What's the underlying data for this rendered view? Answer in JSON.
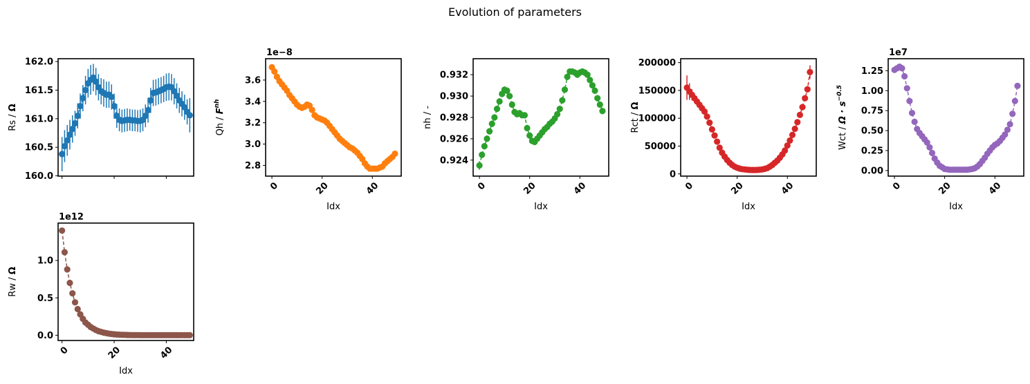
{
  "figure": {
    "suptitle": "Evolution of parameters"
  },
  "chart_data": [
    {
      "type": "line",
      "id": "rs",
      "color": "#1f77b4",
      "errorbars": true,
      "ylabel_text": "Rs / ",
      "ylabel_unit": "Ω",
      "ylabel_sup": "",
      "xlabel": "",
      "show_x_ticklabels": false,
      "offset_text": "",
      "xlim": [
        -1.5,
        50.5
      ],
      "ylim": [
        159.995,
        162.05
      ],
      "xticks": [
        0,
        20,
        40
      ],
      "xticklabels": [
        "",
        "",
        ""
      ],
      "yticks": [
        160.0,
        160.5,
        161.0,
        161.5,
        162.0
      ],
      "yticklabels": [
        "160.0",
        "160.5",
        "161.0",
        "161.5",
        "162.0"
      ],
      "x": [
        0,
        1,
        2,
        3,
        4,
        5,
        6,
        7,
        8,
        9,
        10,
        11,
        12,
        13,
        14,
        15,
        16,
        17,
        18,
        19,
        20,
        21,
        22,
        23,
        24,
        25,
        26,
        27,
        28,
        29,
        30,
        31,
        32,
        33,
        34,
        35,
        36,
        37,
        38,
        39,
        40,
        41,
        42,
        43,
        44,
        45,
        46,
        47,
        48,
        49
      ],
      "values": [
        160.38,
        160.52,
        160.62,
        160.72,
        160.82,
        160.92,
        161.05,
        161.22,
        161.36,
        161.5,
        161.62,
        161.68,
        161.72,
        161.65,
        161.55,
        161.48,
        161.45,
        161.42,
        161.42,
        161.38,
        161.22,
        161.05,
        160.98,
        160.96,
        160.97,
        160.98,
        160.98,
        160.97,
        160.97,
        160.96,
        160.96,
        160.98,
        161.05,
        161.15,
        161.32,
        161.45,
        161.46,
        161.48,
        161.5,
        161.52,
        161.55,
        161.56,
        161.55,
        161.48,
        161.4,
        161.32,
        161.26,
        161.2,
        161.12,
        161.06
      ],
      "err": [
        0.3,
        0.28,
        0.27,
        0.26,
        0.24,
        0.22,
        0.22,
        0.22,
        0.23,
        0.25,
        0.25,
        0.26,
        0.24,
        0.24,
        0.23,
        0.23,
        0.24,
        0.23,
        0.23,
        0.22,
        0.22,
        0.21,
        0.2,
        0.2,
        0.2,
        0.2,
        0.19,
        0.19,
        0.19,
        0.19,
        0.2,
        0.2,
        0.2,
        0.22,
        0.22,
        0.23,
        0.23,
        0.23,
        0.23,
        0.23,
        0.24,
        0.24,
        0.23,
        0.23,
        0.22,
        0.22,
        0.22,
        0.22,
        0.22,
        0.3
      ]
    },
    {
      "type": "line",
      "id": "qh",
      "color": "#ff7f0e",
      "errorbars": true,
      "ylabel_text": "Qh / ",
      "ylabel_unit": "F",
      "ylabel_sup": "nh",
      "xlabel": "Idx",
      "show_x_ticklabels": true,
      "offset_text": "1e−8",
      "xlim": [
        -2.5,
        51.5
      ],
      "ylim": [
        2.7,
        3.8
      ],
      "xticks": [
        0,
        20,
        40
      ],
      "xticklabels": [
        "0",
        "20",
        "40"
      ],
      "yticks": [
        2.8,
        3.0,
        3.2,
        3.4,
        3.6
      ],
      "yticklabels": [
        "2.8",
        "3.0",
        "3.2",
        "3.4",
        "3.6"
      ],
      "x": [
        0,
        1,
        2,
        3,
        4,
        5,
        6,
        7,
        8,
        9,
        10,
        11,
        12,
        13,
        14,
        15,
        16,
        17,
        18,
        19,
        20,
        21,
        22,
        23,
        24,
        25,
        26,
        27,
        28,
        29,
        30,
        31,
        32,
        33,
        34,
        35,
        36,
        37,
        38,
        39,
        40,
        41,
        42,
        43,
        44,
        45,
        46,
        47,
        48,
        49
      ],
      "values": [
        3.72,
        3.68,
        3.63,
        3.59,
        3.56,
        3.53,
        3.5,
        3.46,
        3.43,
        3.4,
        3.37,
        3.35,
        3.34,
        3.35,
        3.37,
        3.36,
        3.32,
        3.27,
        3.25,
        3.24,
        3.23,
        3.22,
        3.2,
        3.17,
        3.14,
        3.11,
        3.08,
        3.05,
        3.03,
        3.01,
        2.99,
        2.97,
        2.96,
        2.94,
        2.92,
        2.89,
        2.86,
        2.82,
        2.79,
        2.77,
        2.77,
        2.77,
        2.77,
        2.78,
        2.79,
        2.82,
        2.84,
        2.86,
        2.88,
        2.91
      ],
      "err": [
        0.01,
        0.01,
        0.01,
        0.01,
        0.01,
        0.01,
        0.01,
        0.01,
        0.01,
        0.01,
        0.01,
        0.01,
        0.01,
        0.01,
        0.01,
        0.01,
        0.01,
        0.01,
        0.01,
        0.01,
        0.01,
        0.01,
        0.01,
        0.01,
        0.01,
        0.01,
        0.01,
        0.01,
        0.01,
        0.01,
        0.01,
        0.01,
        0.01,
        0.01,
        0.01,
        0.01,
        0.01,
        0.01,
        0.01,
        0.01,
        0.01,
        0.01,
        0.01,
        0.01,
        0.01,
        0.01,
        0.01,
        0.01,
        0.01,
        0.01
      ]
    },
    {
      "type": "line",
      "id": "nh",
      "color": "#2ca02c",
      "errorbars": true,
      "ylabel_text": "nh / -",
      "ylabel_unit": "",
      "ylabel_sup": "",
      "xlabel": "Idx",
      "show_x_ticklabels": true,
      "offset_text": "",
      "xlim": [
        -2.5,
        51.5
      ],
      "ylim": [
        0.9225,
        0.9335
      ],
      "xticks": [
        0,
        20,
        40
      ],
      "xticklabels": [
        "0",
        "20",
        "40"
      ],
      "yticks": [
        0.924,
        0.926,
        0.928,
        0.93,
        0.932
      ],
      "yticklabels": [
        "0.924",
        "0.926",
        "0.928",
        "0.930",
        "0.932"
      ],
      "x": [
        0,
        1,
        2,
        3,
        4,
        5,
        6,
        7,
        8,
        9,
        10,
        11,
        12,
        13,
        14,
        15,
        16,
        17,
        18,
        19,
        20,
        21,
        22,
        23,
        24,
        25,
        26,
        27,
        28,
        29,
        30,
        31,
        32,
        33,
        34,
        35,
        36,
        37,
        38,
        39,
        40,
        41,
        42,
        43,
        44,
        45,
        46,
        47,
        48,
        49
      ],
      "values": [
        0.9235,
        0.9245,
        0.9253,
        0.926,
        0.9267,
        0.9274,
        0.928,
        0.9288,
        0.9295,
        0.9302,
        0.9306,
        0.9305,
        0.93,
        0.9292,
        0.9285,
        0.9283,
        0.9284,
        0.9282,
        0.9282,
        0.927,
        0.9263,
        0.9258,
        0.9257,
        0.926,
        0.9263,
        0.9266,
        0.9269,
        0.9271,
        0.9274,
        0.9276,
        0.9279,
        0.9283,
        0.9288,
        0.9296,
        0.9306,
        0.9318,
        0.9323,
        0.9323,
        0.9322,
        0.932,
        0.9322,
        0.9323,
        0.9322,
        0.932,
        0.9315,
        0.931,
        0.9305,
        0.9298,
        0.9292,
        0.9286
      ],
      "err": [
        0.0004,
        0.0003,
        0.0003,
        0.0003,
        0.0003,
        0.0003,
        0.0003,
        0.0003,
        0.0003,
        0.0003,
        0.0003,
        0.0003,
        0.0003,
        0.0003,
        0.0003,
        0.0003,
        0.0003,
        0.0003,
        0.0003,
        0.0003,
        0.0003,
        0.0003,
        0.0003,
        0.0003,
        0.0003,
        0.0003,
        0.0003,
        0.0003,
        0.0003,
        0.0003,
        0.0003,
        0.0003,
        0.0003,
        0.0003,
        0.0003,
        0.0003,
        0.0003,
        0.0003,
        0.0003,
        0.0003,
        0.0003,
        0.0003,
        0.0003,
        0.0003,
        0.0003,
        0.0003,
        0.0003,
        0.0003,
        0.0003,
        0.0003
      ]
    },
    {
      "type": "line",
      "id": "rct",
      "color": "#d62728",
      "errorbars": true,
      "ylabel_text": "Rct / ",
      "ylabel_unit": "Ω",
      "ylabel_sup": "",
      "xlabel": "Idx",
      "show_x_ticklabels": true,
      "offset_text": "",
      "xlim": [
        -2.5,
        51.5
      ],
      "ylim": [
        -4000,
        207000
      ],
      "xticks": [
        0,
        20,
        40
      ],
      "xticklabels": [
        "0",
        "20",
        "40"
      ],
      "yticks": [
        0,
        50000,
        100000,
        150000,
        200000
      ],
      "yticklabels": [
        "0",
        "50000",
        "100000",
        "150000",
        "200000"
      ],
      "x": [
        0,
        1,
        2,
        3,
        4,
        5,
        6,
        7,
        8,
        9,
        10,
        11,
        12,
        13,
        14,
        15,
        16,
        17,
        18,
        19,
        20,
        21,
        22,
        23,
        24,
        25,
        26,
        27,
        28,
        29,
        30,
        31,
        32,
        33,
        34,
        35,
        36,
        37,
        38,
        39,
        40,
        41,
        42,
        43,
        44,
        45,
        46,
        47,
        48,
        49
      ],
      "values": [
        155000,
        148000,
        142000,
        136000,
        130000,
        124000,
        118000,
        112000,
        103000,
        92000,
        80000,
        69000,
        58000,
        47000,
        38000,
        31000,
        25000,
        20000,
        16000,
        13000,
        11000,
        9500,
        8500,
        8000,
        7500,
        7200,
        7000,
        7000,
        7200,
        7500,
        8000,
        9000,
        10500,
        13000,
        16000,
        20000,
        24000,
        29000,
        35000,
        42000,
        51000,
        60000,
        70000,
        81000,
        93000,
        106000,
        120000,
        136000,
        152000,
        183000
      ],
      "err": [
        22000,
        15000,
        10000,
        8000,
        6000,
        5000,
        4000,
        3000,
        3000,
        2500,
        2500,
        2000,
        2000,
        1500,
        1500,
        1200,
        1000,
        1000,
        800,
        800,
        700,
        700,
        600,
        600,
        600,
        600,
        600,
        600,
        600,
        600,
        600,
        700,
        700,
        800,
        900,
        1000,
        1100,
        1300,
        1500,
        1800,
        2000,
        2300,
        2600,
        3000,
        3500,
        4000,
        4500,
        5000,
        6000,
        12000
      ]
    },
    {
      "type": "line",
      "id": "wct",
      "color": "#9467bd",
      "errorbars": false,
      "ylabel_text": "Wct / ",
      "ylabel_unit": "Ω · s",
      "ylabel_sup": "−0.5",
      "xlabel": "Idx",
      "show_x_ticklabels": true,
      "offset_text": "1e7",
      "xlim": [
        -2.5,
        51.5
      ],
      "ylim": [
        -0.07,
        1.4
      ],
      "xticks": [
        0,
        20,
        40
      ],
      "xticklabels": [
        "0",
        "20",
        "40"
      ],
      "yticks": [
        0.0,
        0.25,
        0.5,
        0.75,
        1.0,
        1.25
      ],
      "yticklabels": [
        "0.00",
        "0.25",
        "0.50",
        "0.75",
        "1.00",
        "1.25"
      ],
      "x": [
        0,
        1,
        2,
        3,
        4,
        5,
        6,
        7,
        8,
        9,
        10,
        11,
        12,
        13,
        14,
        15,
        16,
        17,
        18,
        19,
        20,
        21,
        22,
        23,
        24,
        25,
        26,
        27,
        28,
        29,
        30,
        31,
        32,
        33,
        34,
        35,
        36,
        37,
        38,
        39,
        40,
        41,
        42,
        43,
        44,
        45,
        46,
        47,
        48,
        49
      ],
      "values": [
        1.26,
        1.28,
        1.3,
        1.28,
        1.18,
        1.03,
        0.87,
        0.72,
        0.61,
        0.52,
        0.47,
        0.43,
        0.39,
        0.35,
        0.29,
        0.22,
        0.15,
        0.1,
        0.06,
        0.04,
        0.02,
        0.015,
        0.01,
        0.01,
        0.01,
        0.01,
        0.01,
        0.01,
        0.01,
        0.01,
        0.015,
        0.02,
        0.03,
        0.05,
        0.08,
        0.12,
        0.16,
        0.21,
        0.25,
        0.29,
        0.32,
        0.34,
        0.37,
        0.41,
        0.45,
        0.51,
        0.58,
        0.71,
        0.87,
        1.06
      ],
      "err": []
    },
    {
      "type": "line",
      "id": "rw",
      "color": "#8c564b",
      "errorbars": false,
      "ylabel_text": "Rw / ",
      "ylabel_unit": "Ω",
      "ylabel_sup": "",
      "xlabel": "Idx",
      "show_x_ticklabels": true,
      "offset_text": "1e12",
      "xlim": [
        -1.5,
        50.5
      ],
      "ylim": [
        -0.07,
        1.5
      ],
      "xticks": [
        0,
        20,
        40
      ],
      "xticklabels": [
        "0",
        "20",
        "40"
      ],
      "yticks": [
        0.0,
        0.5,
        1.0
      ],
      "yticklabels": [
        "0.0",
        "0.5",
        "1.0"
      ],
      "x": [
        0,
        1,
        2,
        3,
        4,
        5,
        6,
        7,
        8,
        9,
        10,
        11,
        12,
        13,
        14,
        15,
        16,
        17,
        18,
        19,
        20,
        21,
        22,
        23,
        24,
        25,
        26,
        27,
        28,
        29,
        30,
        31,
        32,
        33,
        34,
        35,
        36,
        37,
        38,
        39,
        40,
        41,
        42,
        43,
        44,
        45,
        46,
        47,
        48,
        49
      ],
      "values": [
        1.4,
        1.11,
        0.88,
        0.7,
        0.56,
        0.44,
        0.35,
        0.28,
        0.22,
        0.17,
        0.14,
        0.11,
        0.09,
        0.07,
        0.055,
        0.045,
        0.035,
        0.028,
        0.022,
        0.017,
        0.013,
        0.01,
        0.008,
        0.006,
        0.005,
        0.004,
        0.003,
        0.002,
        0.002,
        0.002,
        0.001,
        0.001,
        0.001,
        0.001,
        0.001,
        0.001,
        0.001,
        0.001,
        0.001,
        0.001,
        0.001,
        0.001,
        0.001,
        0.001,
        0.001,
        0.001,
        0.001,
        0.001,
        0.001,
        0.001
      ],
      "err": []
    }
  ]
}
